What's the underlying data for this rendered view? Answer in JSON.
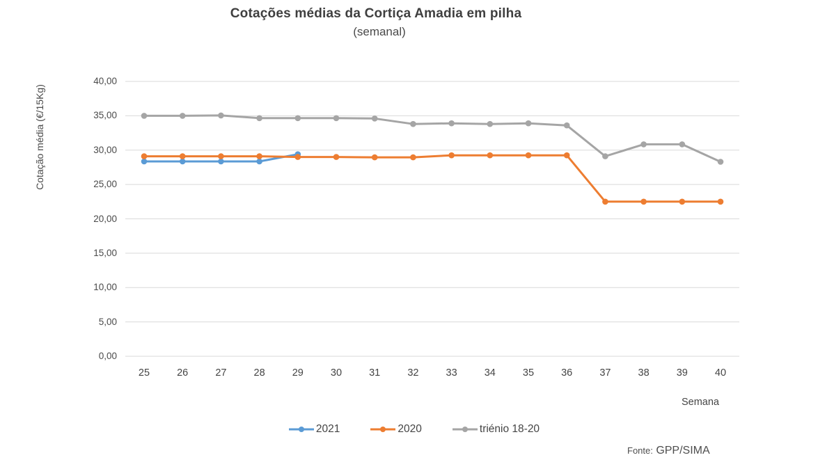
{
  "title": "Cotações médias da Cortiça Amadia em pilha",
  "subtitle": "(semanal)",
  "y_axis": {
    "title": "Cotação média (€/15Kg)",
    "min": 0,
    "max": 40,
    "step": 5,
    "tick_values": [
      40,
      35,
      30,
      25,
      20,
      15,
      10,
      5,
      0
    ],
    "tick_labels": [
      "40,00",
      "35,00",
      "30,00",
      "25,00",
      "20,00",
      "15,00",
      "10,00",
      "5,00",
      "0,00"
    ]
  },
  "x_axis": {
    "title": "Semana",
    "tick_labels": [
      "25",
      "26",
      "27",
      "28",
      "29",
      "30",
      "31",
      "32",
      "33",
      "34",
      "35",
      "36",
      "37",
      "38",
      "39",
      "40"
    ]
  },
  "source": {
    "prefix": "Fonte:",
    "name": "GPP/SIMA"
  },
  "colors": {
    "series_2021": "#5B9BD5",
    "series_2020": "#ED7D31",
    "series_trienio": "#A5A5A5",
    "gridline": "#D9D9D9",
    "title_text": "#3F3F3F",
    "label_text": "#4A4A4A"
  },
  "chart_data": {
    "type": "line",
    "title": "Cotações médias da Cortiça Amadia em pilha (semanal)",
    "xlabel": "Semana",
    "ylabel": "Cotação média (€/15Kg)",
    "x": [
      25,
      26,
      27,
      28,
      29,
      30,
      31,
      32,
      33,
      34,
      35,
      36,
      37,
      38,
      39,
      40
    ],
    "ylim": [
      0,
      40
    ],
    "grid": true,
    "legend_position": "bottom",
    "series": [
      {
        "name": "2021",
        "color": "#5B9BD5",
        "values": [
          28.35,
          28.35,
          28.35,
          28.35,
          29.4,
          null,
          null,
          null,
          null,
          null,
          null,
          null,
          null,
          null,
          null,
          null
        ]
      },
      {
        "name": "2020",
        "color": "#ED7D31",
        "values": [
          29.1,
          29.1,
          29.1,
          29.1,
          29.0,
          29.0,
          28.95,
          28.95,
          29.25,
          29.25,
          29.25,
          29.25,
          22.5,
          22.5,
          22.5,
          22.5
        ]
      },
      {
        "name": "triénio 18-20",
        "color": "#A5A5A5",
        "values": [
          35.0,
          35.0,
          35.05,
          34.65,
          34.65,
          34.65,
          34.6,
          33.8,
          33.9,
          33.8,
          33.9,
          33.6,
          29.1,
          30.85,
          30.85,
          28.3
        ]
      }
    ]
  }
}
